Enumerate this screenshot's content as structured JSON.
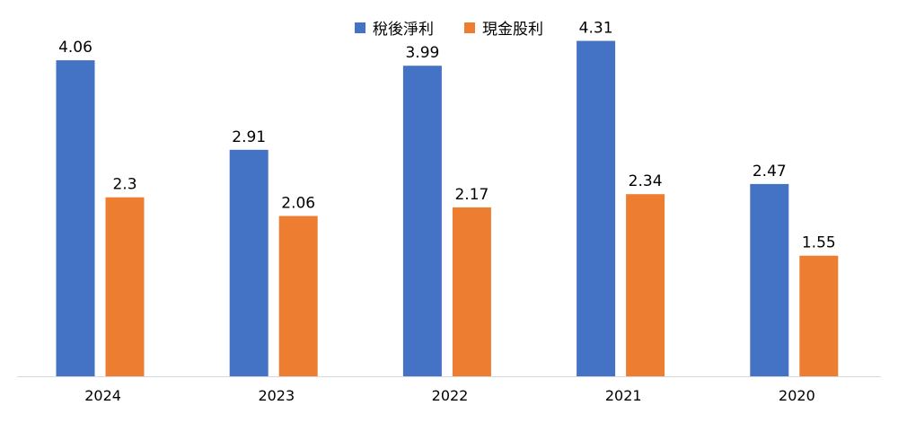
{
  "chart_data": {
    "type": "bar",
    "categories": [
      "2024",
      "2023",
      "2022",
      "2021",
      "2020"
    ],
    "series": [
      {
        "name": "稅後淨利",
        "color": "#4472C4",
        "values": [
          4.06,
          2.91,
          3.99,
          4.31,
          2.47
        ],
        "labels": [
          "4.06",
          "2.91",
          "3.99",
          "4.31",
          "2.47"
        ]
      },
      {
        "name": "現金股利",
        "color": "#ED7D31",
        "values": [
          2.3,
          2.06,
          2.17,
          2.34,
          1.55
        ],
        "labels": [
          "2.3",
          "2.06",
          "2.17",
          "2.34",
          "1.55"
        ]
      }
    ],
    "ylim": [
      0,
      4.5
    ],
    "legend_position": "top-center",
    "title": "",
    "xlabel": "",
    "ylabel": ""
  }
}
